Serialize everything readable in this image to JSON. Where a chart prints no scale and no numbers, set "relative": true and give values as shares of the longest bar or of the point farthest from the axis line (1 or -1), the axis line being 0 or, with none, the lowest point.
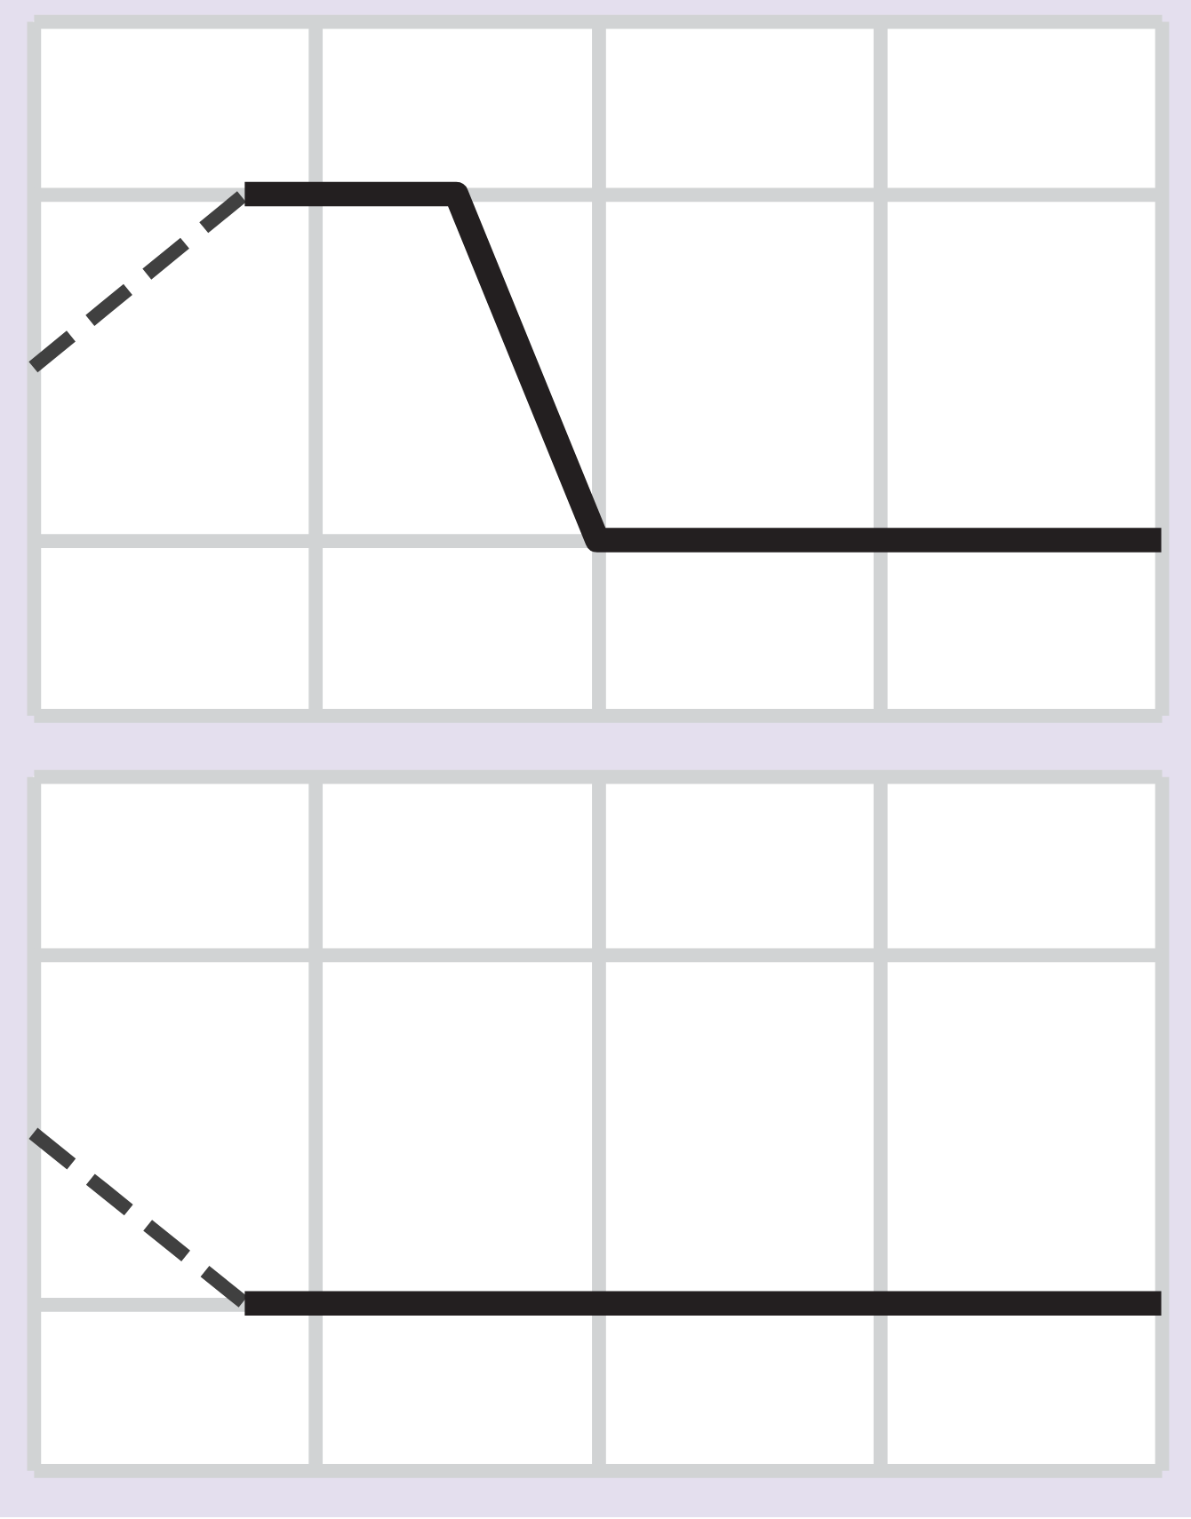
{
  "chart_data": [
    {
      "type": "line",
      "relative": true,
      "categories": [
        null,
        null,
        null,
        null,
        null,
        null,
        null,
        null,
        null,
        null,
        null,
        null,
        null,
        null,
        null,
        null,
        null
      ],
      "grid": true,
      "marker": "none",
      "series": [
        {
          "color": "#404040",
          "line_style": "dashed",
          "values": [
            0.5,
            0.667,
            0.833,
            1,
            null,
            null,
            null,
            null,
            null,
            null,
            null,
            null,
            null,
            null,
            null,
            null,
            null
          ]
        },
        {
          "color": "#231f20",
          "line_style": "solid",
          "values": [
            null,
            null,
            null,
            1,
            1,
            1,
            1,
            0.5,
            0,
            0,
            0,
            0,
            0,
            0,
            0,
            0,
            0
          ]
        }
      ]
    },
    {
      "type": "line",
      "relative": true,
      "categories": [
        null,
        null,
        null,
        null,
        null,
        null,
        null,
        null,
        null,
        null,
        null,
        null,
        null,
        null,
        null,
        null,
        null
      ],
      "grid": true,
      "marker": "none",
      "series": [
        {
          "color": "#404040",
          "line_style": "dashed",
          "values": [
            1,
            0.667,
            0.333,
            0,
            null,
            null,
            null,
            null,
            null,
            null,
            null,
            null,
            null,
            null,
            null,
            null,
            null
          ]
        },
        {
          "color": "#231f20",
          "line_style": "solid",
          "values": [
            null,
            null,
            null,
            0,
            0,
            0,
            0,
            0,
            0,
            0,
            0,
            0,
            0,
            0,
            0,
            0,
            0
          ]
        }
      ]
    }
  ]
}
